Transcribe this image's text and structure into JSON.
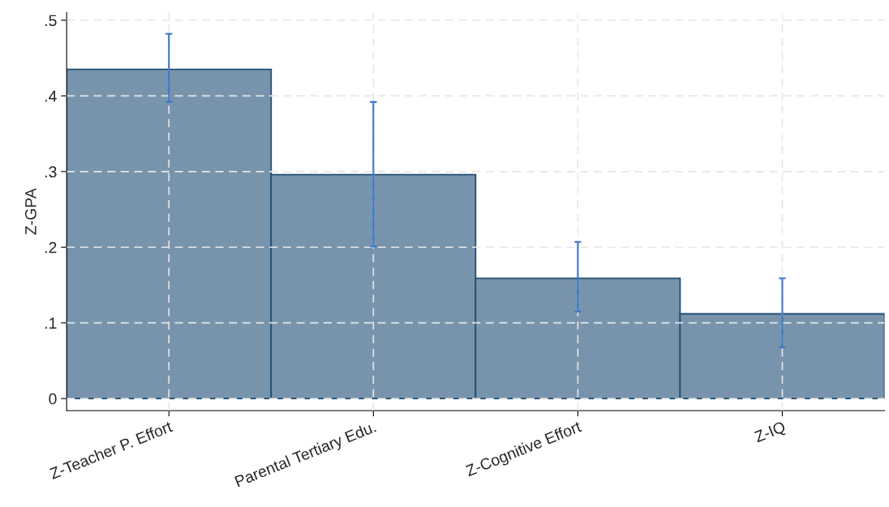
{
  "chart_data": {
    "type": "bar",
    "ylabel": "Z-GPA",
    "categories": [
      "Z-Teacher P. Effort",
      "Parental Tertiary Edu.",
      "Z-Cognitive Effort",
      "Z-IQ"
    ],
    "values": [
      0.435,
      0.296,
      0.159,
      0.112
    ],
    "errors": [
      [
        0.392,
        0.482
      ],
      [
        0.201,
        0.392
      ],
      [
        0.115,
        0.207
      ],
      [
        0.068,
        0.159
      ]
    ],
    "color": "#7894ad",
    "ylim": [
      -0.016,
      0.51
    ],
    "yticks": [
      {
        "value": 0,
        "label": "0"
      },
      {
        "value": 0.1,
        "label": ".1"
      },
      {
        "value": 0.2,
        "label": ".2"
      },
      {
        "value": 0.3,
        "label": ".3"
      },
      {
        "value": 0.4,
        "label": ".4"
      },
      {
        "value": 0.5,
        "label": ".5"
      }
    ],
    "grid": true
  }
}
